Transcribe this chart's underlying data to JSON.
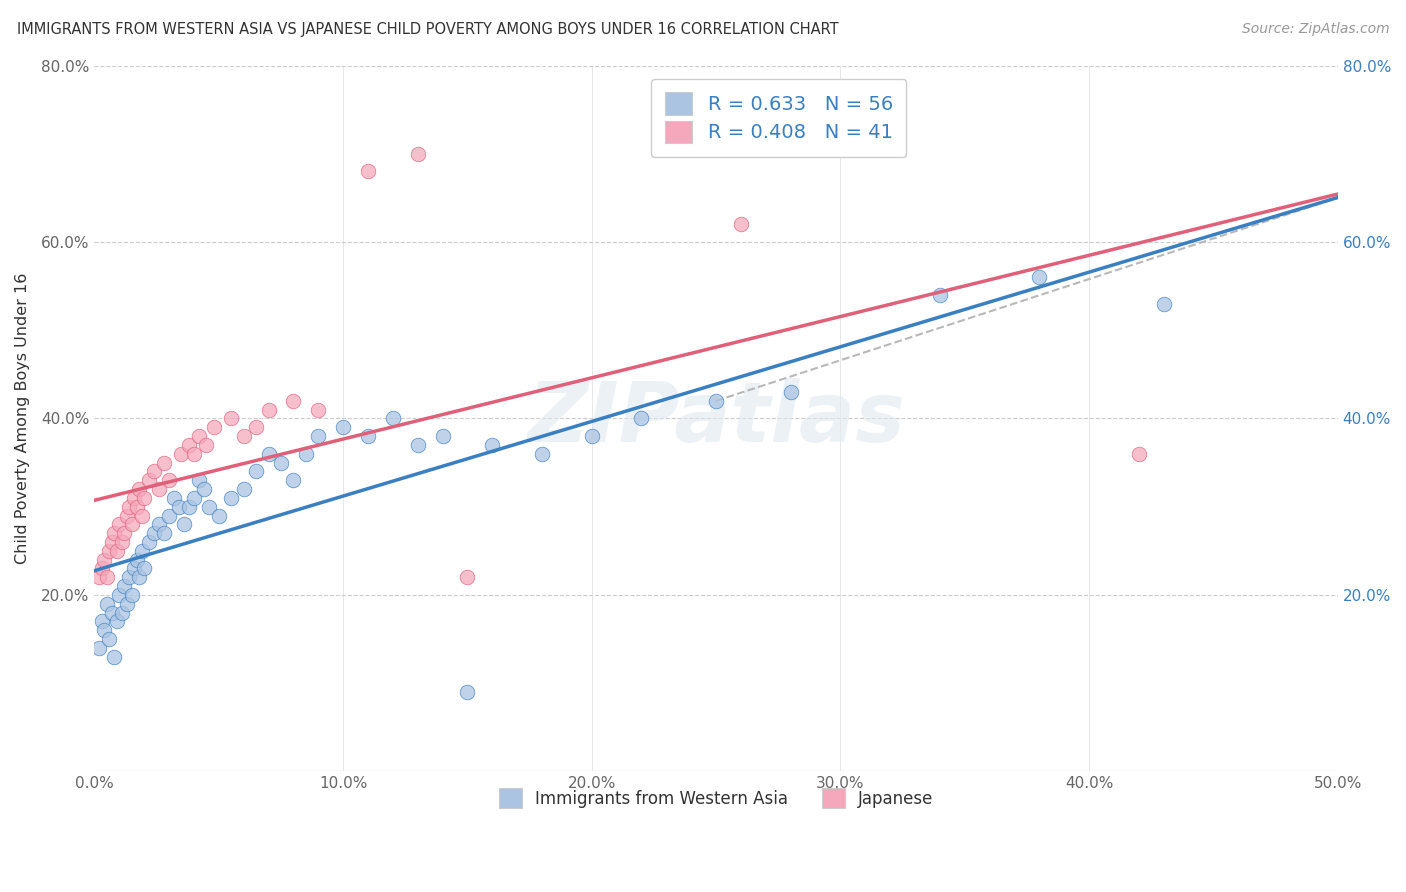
{
  "title": "IMMIGRANTS FROM WESTERN ASIA VS JAPANESE CHILD POVERTY AMONG BOYS UNDER 16 CORRELATION CHART",
  "source": "Source: ZipAtlas.com",
  "ylabel": "Child Poverty Among Boys Under 16",
  "legend_label_blue": "Immigrants from Western Asia",
  "legend_label_pink": "Japanese",
  "R_blue": 0.633,
  "N_blue": 56,
  "R_pink": 0.408,
  "N_pink": 41,
  "xlim": [
    0.0,
    0.5
  ],
  "ylim": [
    0.0,
    0.8
  ],
  "xticks": [
    0.0,
    0.1,
    0.2,
    0.3,
    0.4,
    0.5
  ],
  "yticks": [
    0.0,
    0.2,
    0.4,
    0.6,
    0.8
  ],
  "xtick_labels": [
    "0.0%",
    "10.0%",
    "20.0%",
    "30.0%",
    "40.0%",
    "50.0%"
  ],
  "ytick_labels_left": [
    "",
    "20.0%",
    "40.0%",
    "60.0%",
    "80.0%"
  ],
  "ytick_labels_right": [
    "",
    "20.0%",
    "40.0%",
    "60.0%",
    "80.0%"
  ],
  "color_blue": "#aac4e2",
  "color_pink": "#f5a8bc",
  "line_color_blue": "#3a7fc1",
  "line_color_pink": "#e0607a",
  "line_color_gray": "#b8b8b8",
  "watermark": "ZIPatlas",
  "blue_points": [
    [
      0.002,
      0.14
    ],
    [
      0.003,
      0.17
    ],
    [
      0.004,
      0.16
    ],
    [
      0.005,
      0.19
    ],
    [
      0.006,
      0.15
    ],
    [
      0.007,
      0.18
    ],
    [
      0.008,
      0.13
    ],
    [
      0.009,
      0.17
    ],
    [
      0.01,
      0.2
    ],
    [
      0.011,
      0.18
    ],
    [
      0.012,
      0.21
    ],
    [
      0.013,
      0.19
    ],
    [
      0.014,
      0.22
    ],
    [
      0.015,
      0.2
    ],
    [
      0.016,
      0.23
    ],
    [
      0.017,
      0.24
    ],
    [
      0.018,
      0.22
    ],
    [
      0.019,
      0.25
    ],
    [
      0.02,
      0.23
    ],
    [
      0.022,
      0.26
    ],
    [
      0.024,
      0.27
    ],
    [
      0.026,
      0.28
    ],
    [
      0.028,
      0.27
    ],
    [
      0.03,
      0.29
    ],
    [
      0.032,
      0.31
    ],
    [
      0.034,
      0.3
    ],
    [
      0.036,
      0.28
    ],
    [
      0.038,
      0.3
    ],
    [
      0.04,
      0.31
    ],
    [
      0.042,
      0.33
    ],
    [
      0.044,
      0.32
    ],
    [
      0.046,
      0.3
    ],
    [
      0.05,
      0.29
    ],
    [
      0.055,
      0.31
    ],
    [
      0.06,
      0.32
    ],
    [
      0.065,
      0.34
    ],
    [
      0.07,
      0.36
    ],
    [
      0.075,
      0.35
    ],
    [
      0.08,
      0.33
    ],
    [
      0.085,
      0.36
    ],
    [
      0.09,
      0.38
    ],
    [
      0.1,
      0.39
    ],
    [
      0.11,
      0.38
    ],
    [
      0.12,
      0.4
    ],
    [
      0.13,
      0.37
    ],
    [
      0.14,
      0.38
    ],
    [
      0.15,
      0.09
    ],
    [
      0.16,
      0.37
    ],
    [
      0.18,
      0.36
    ],
    [
      0.2,
      0.38
    ],
    [
      0.22,
      0.4
    ],
    [
      0.25,
      0.42
    ],
    [
      0.28,
      0.43
    ],
    [
      0.34,
      0.54
    ],
    [
      0.38,
      0.56
    ],
    [
      0.43,
      0.53
    ]
  ],
  "pink_points": [
    [
      0.002,
      0.22
    ],
    [
      0.003,
      0.23
    ],
    [
      0.004,
      0.24
    ],
    [
      0.005,
      0.22
    ],
    [
      0.006,
      0.25
    ],
    [
      0.007,
      0.26
    ],
    [
      0.008,
      0.27
    ],
    [
      0.009,
      0.25
    ],
    [
      0.01,
      0.28
    ],
    [
      0.011,
      0.26
    ],
    [
      0.012,
      0.27
    ],
    [
      0.013,
      0.29
    ],
    [
      0.014,
      0.3
    ],
    [
      0.015,
      0.28
    ],
    [
      0.016,
      0.31
    ],
    [
      0.017,
      0.3
    ],
    [
      0.018,
      0.32
    ],
    [
      0.019,
      0.29
    ],
    [
      0.02,
      0.31
    ],
    [
      0.022,
      0.33
    ],
    [
      0.024,
      0.34
    ],
    [
      0.026,
      0.32
    ],
    [
      0.028,
      0.35
    ],
    [
      0.03,
      0.33
    ],
    [
      0.035,
      0.36
    ],
    [
      0.038,
      0.37
    ],
    [
      0.04,
      0.36
    ],
    [
      0.042,
      0.38
    ],
    [
      0.045,
      0.37
    ],
    [
      0.048,
      0.39
    ],
    [
      0.055,
      0.4
    ],
    [
      0.06,
      0.38
    ],
    [
      0.065,
      0.39
    ],
    [
      0.07,
      0.41
    ],
    [
      0.08,
      0.42
    ],
    [
      0.09,
      0.41
    ],
    [
      0.11,
      0.68
    ],
    [
      0.13,
      0.7
    ],
    [
      0.15,
      0.22
    ],
    [
      0.26,
      0.62
    ],
    [
      0.42,
      0.36
    ]
  ],
  "gray_line": [
    [
      0.25,
      0.42
    ],
    [
      0.5,
      0.65
    ]
  ]
}
